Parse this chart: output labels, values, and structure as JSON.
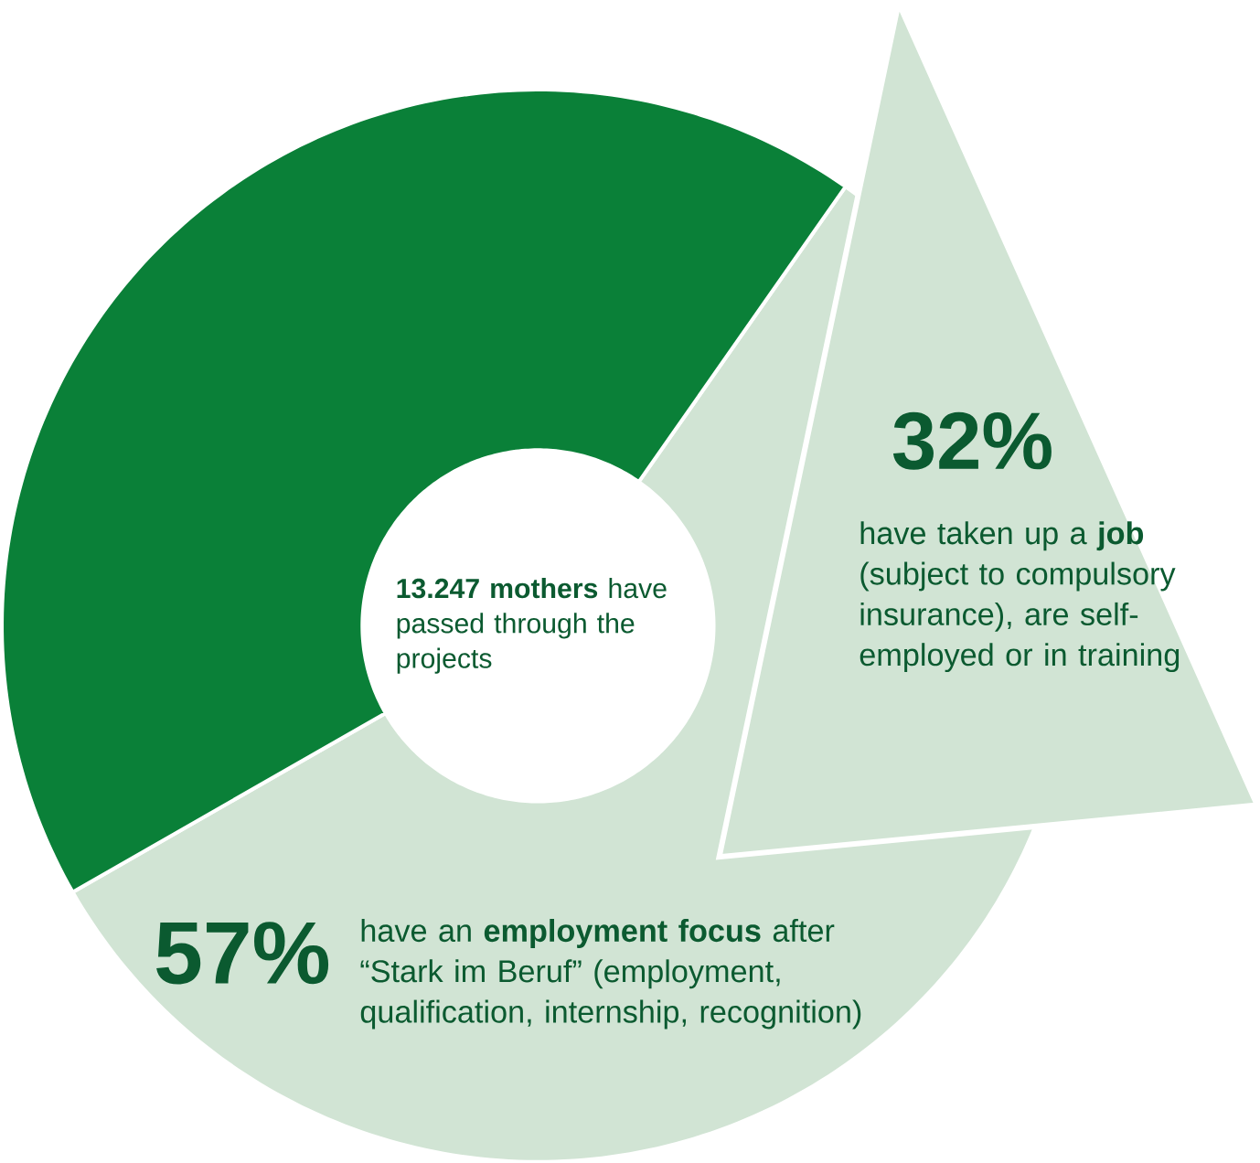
{
  "chart_data": {
    "type": "donut",
    "title": "**13.247 mothers** have passed through the projects",
    "categories": [
      "have an **employment focus** after “Stark im Beruf” (employment, qualification, internship, recognition)",
      null
    ],
    "values": [
      57,
      43
    ],
    "value_labels": [
      "57%",
      null
    ],
    "colors": [
      "#d1e4d4",
      "#0a8038"
    ],
    "annotations": [
      "32%",
      "have taken up a **job** (subject to compulsory insurance), are self-employed or in training"
    ]
  }
}
